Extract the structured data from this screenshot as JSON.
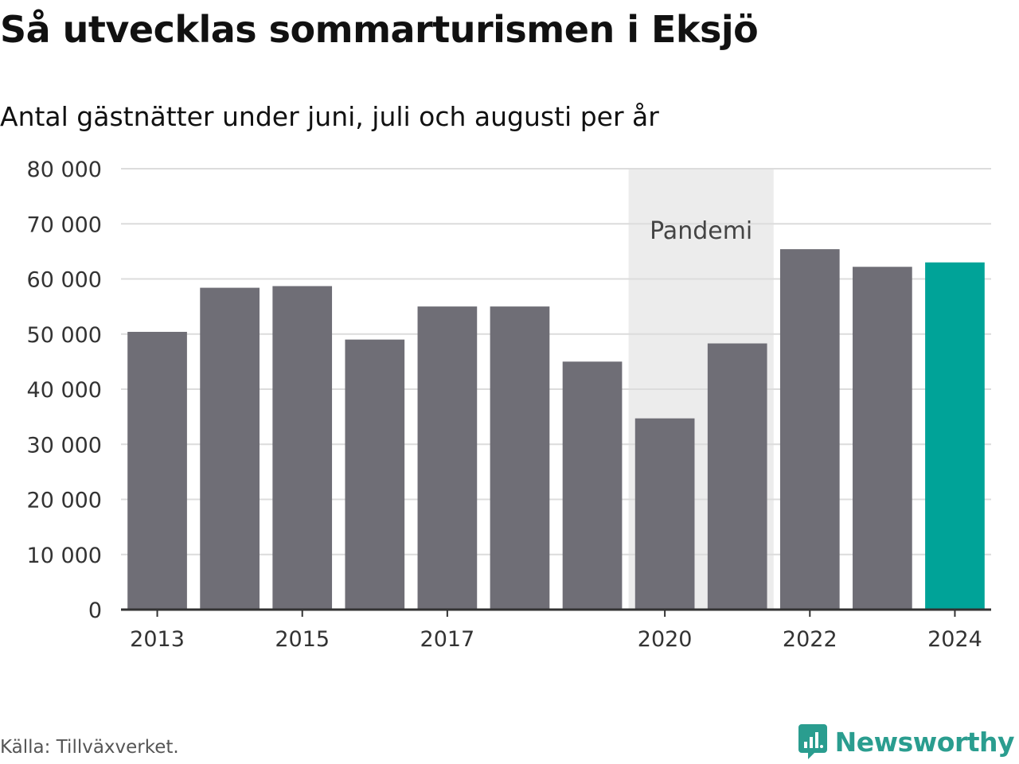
{
  "title": "Så utvecklas sommarturismen i Eksjö",
  "subtitle": "Antal gästnätter under juni, juli och augusti per år",
  "source": "Källa: Tillväxverket.",
  "brand": {
    "name": "Newsworthy",
    "icon": "chart-speech-bubble-icon",
    "color": "#2a9d8f"
  },
  "chart_data": {
    "type": "bar",
    "categories": [
      "2013",
      "2014",
      "2015",
      "2016",
      "2017",
      "2018",
      "2019",
      "2020",
      "2021",
      "2022",
      "2023",
      "2024"
    ],
    "values": [
      50400,
      58400,
      58700,
      49000,
      55000,
      55000,
      45000,
      34700,
      48300,
      65400,
      62200,
      63000
    ],
    "x_tick_labels": [
      "2013",
      "2015",
      "2017",
      "2020",
      "2022",
      "2024"
    ],
    "y_ticks": [
      0,
      10000,
      20000,
      30000,
      40000,
      50000,
      60000,
      70000,
      80000
    ],
    "y_tick_labels": [
      "0",
      "10 000",
      "20 000",
      "30 000",
      "40 000",
      "50 000",
      "60 000",
      "70 000",
      "80 000"
    ],
    "ylim": [
      0,
      80000
    ],
    "xlabel": "",
    "ylabel": "",
    "grid": true,
    "colors": {
      "default": "#6f6e76",
      "highlight": "#00a398",
      "band": "#ececec",
      "grid": "#dcdcdc",
      "axis": "#333333"
    },
    "highlight_category": "2024",
    "annotations": [
      {
        "type": "band",
        "label": "Pandemi",
        "from": "2020",
        "to": "2021"
      }
    ]
  }
}
